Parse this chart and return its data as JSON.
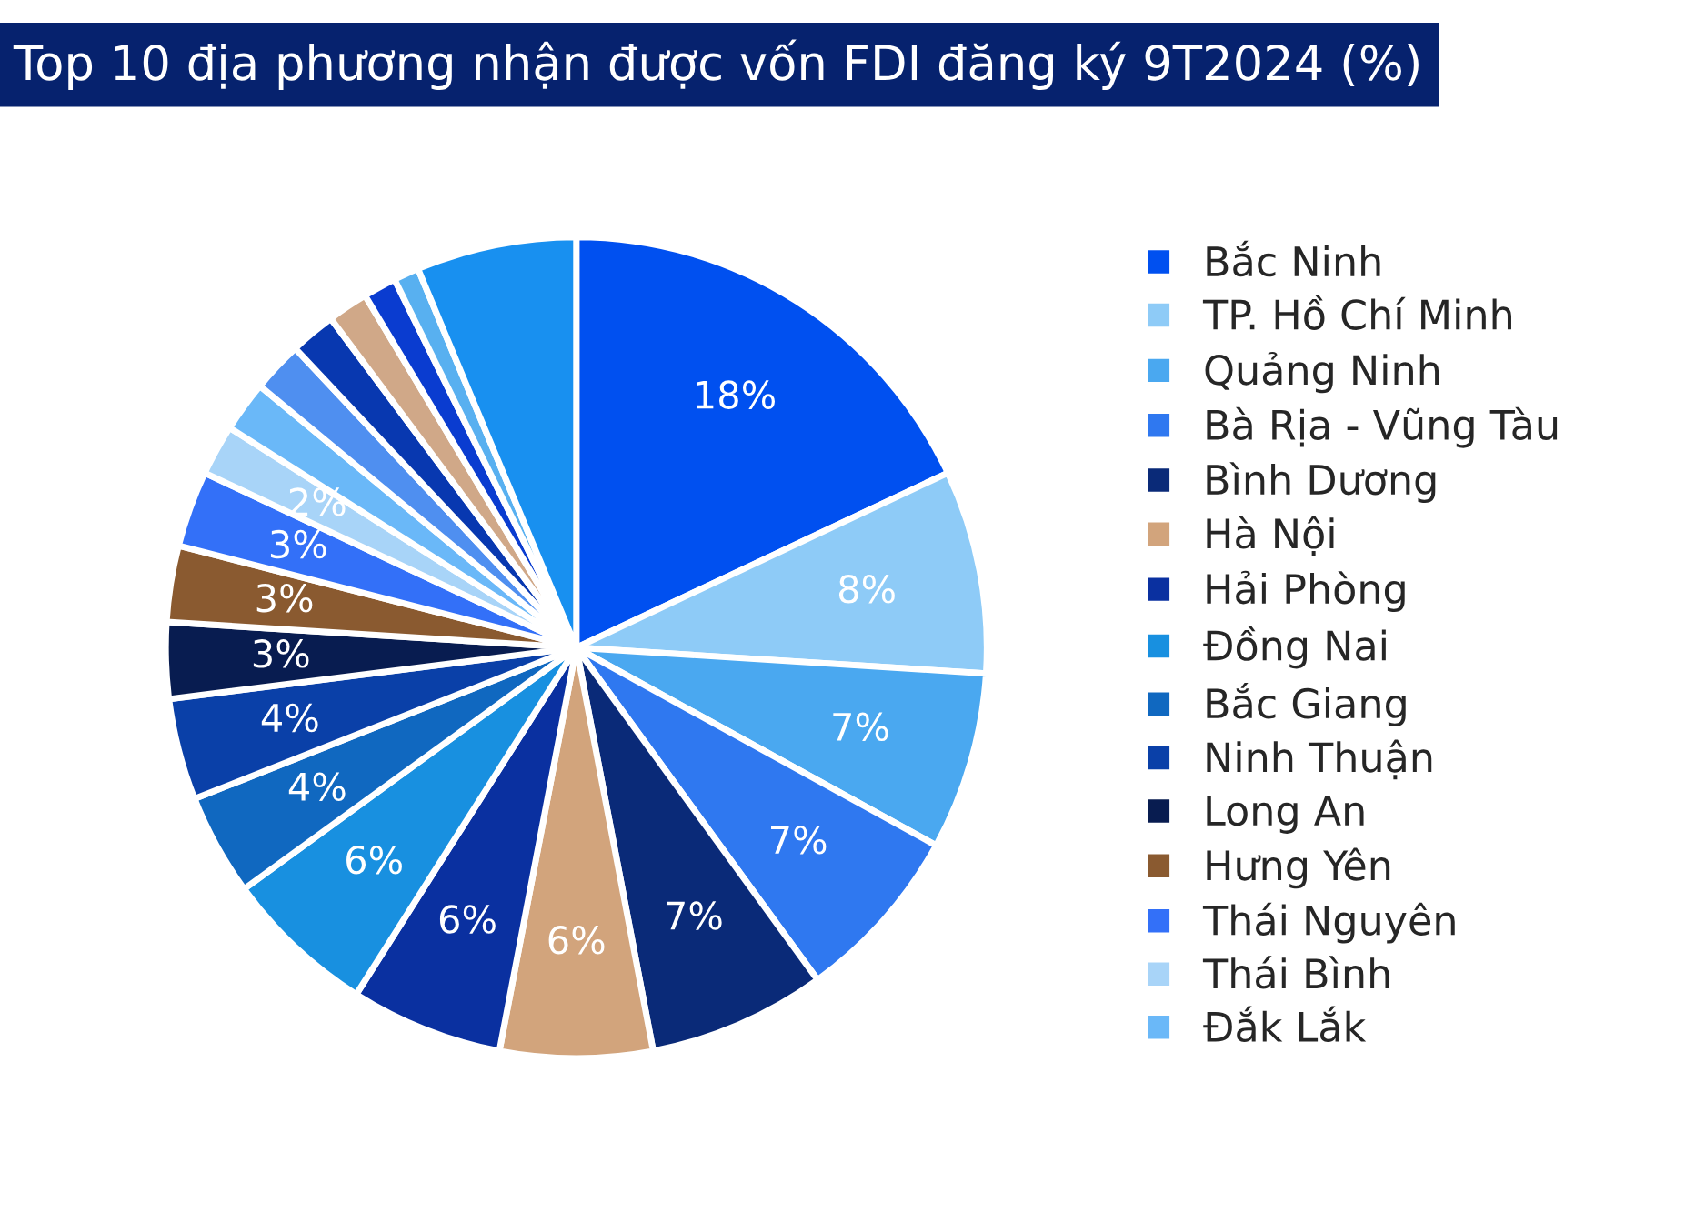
{
  "chart_data": {
    "type": "pie",
    "title": "Top 10 địa phương nhận được vốn FDI đăng ký 9T2024 (%)",
    "categories": [
      "Bắc Ninh",
      "TP. Hồ Chí Minh",
      "Quảng Ninh",
      "Bà Rịa - Vũng Tàu",
      "Bình Dương",
      "Hà Nội",
      "Hải Phòng",
      "Đồng Nai",
      "Bắc Giang",
      "Ninh Thuận",
      "Long An",
      "Hưng Yên",
      "Thái Nguyên",
      "Thái Bình",
      "Đắk Lắk",
      null,
      null,
      null,
      null,
      null,
      null
    ],
    "values": [
      18,
      8,
      7,
      7,
      7,
      6,
      6,
      6,
      4,
      4,
      3,
      3,
      3,
      2,
      2,
      2,
      1.8,
      1.6,
      1.3,
      1,
      6.3
    ],
    "value_labels": [
      "18%",
      "8%",
      "7%",
      "7%",
      "7%",
      "6%",
      "6%",
      "6%",
      "4%",
      "4%",
      "3%",
      "3%",
      "3%",
      "2%",
      null,
      null,
      null,
      null,
      null,
      null,
      null
    ],
    "colors": [
      "#0050f0",
      "#8ecbf7",
      "#4aa8f0",
      "#2f78f0",
      "#0a2a78",
      "#d2a47c",
      "#0a30a0",
      "#1890e0",
      "#1068c0",
      "#0a40a8",
      "#081c50",
      "#8a5a30",
      "#3370f8",
      "#a8d4f8",
      "#6ab8f8",
      "#4f8ff0",
      "#0838b0",
      "#d0a888",
      "#0a3cd0",
      "#58b0f0",
      "#1890f0"
    ],
    "legend": "right"
  }
}
